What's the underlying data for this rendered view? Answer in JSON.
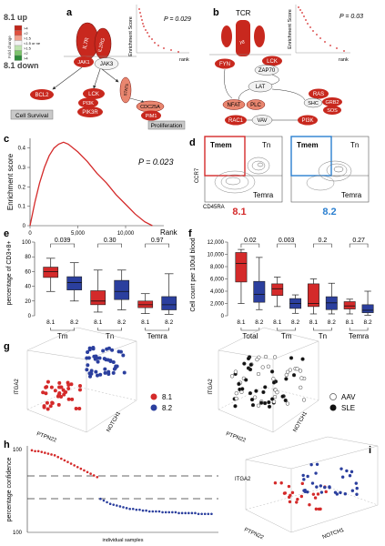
{
  "panels": {
    "a": {
      "letter": "a",
      "legend_up": "8.1 up",
      "legend_down": "8.1 down",
      "legend_title": "Fold change",
      "legend_items": [
        ">4",
        ">2",
        ">1.5",
        "<1.5 or ne",
        ">1.5",
        ">2",
        ">4"
      ],
      "legend_colors": [
        "#c0271c",
        "#e0503e",
        "#f2a08c",
        "#f4f4f4",
        "#bfe3b0",
        "#7cc36b",
        "#2e8b3a"
      ],
      "nodes": [
        "IL7R",
        "IL2RG",
        "JAK1",
        "JAK3",
        "STAT5",
        "BCL2",
        "LCK",
        "PI3K",
        "PIK3R",
        "CDC25A",
        "PIM1"
      ],
      "box_survival": "Cell Survival",
      "box_proliferation": "Proliferation",
      "gsea": {
        "p": "P = 0.029",
        "ylabel": "Enrichment Score",
        "xlabel": "rank"
      }
    },
    "b": {
      "letter": "b",
      "title": "TCR",
      "nodes": [
        "ε",
        "γδ",
        "LCK",
        "FYN",
        "ZAP70",
        "LAT",
        "NFAT",
        "PLC",
        "RAS",
        "SHC",
        "GRB2",
        "SOS",
        "RAC1",
        "VAV",
        "PI3K"
      ],
      "gsea": {
        "p": "P = 0.03",
        "ylabel": "Enrichment Score",
        "xlabel": "rank"
      }
    },
    "c": {
      "letter": "c",
      "p": "P = 0.023",
      "ylabel": "Enrichment score",
      "xlabel": "Rank",
      "yticks": [
        "0.4",
        "0.3",
        "0.2",
        "0.1",
        "0"
      ],
      "xticks": [
        "0",
        "5,000",
        "10,000"
      ]
    },
    "d": {
      "letter": "d",
      "left": {
        "tmem": "Tmem",
        "tn": "Tn",
        "temra": "Temra",
        "group": "8.1",
        "color": "#d42a2a"
      },
      "right": {
        "tmem": "Tmem",
        "tn": "Tn",
        "temra": "Temra",
        "group": "8.2",
        "color": "#2b7fd0"
      },
      "ylabel": "CCR7",
      "xlabel": "CD45RA"
    },
    "e": {
      "letter": "e",
      "ylabel": "percentage of CD3+8+",
      "yticks": [
        "100",
        "80",
        "60",
        "40",
        "20",
        "0"
      ],
      "pvalues": [
        "0.039",
        "0.30",
        "0.97"
      ],
      "groups": [
        "Tm",
        "Tn",
        "Temra"
      ],
      "sub": [
        "8.1",
        "8.2",
        "8.1",
        "8.2",
        "8.1",
        "8.2"
      ]
    },
    "f": {
      "letter": "f",
      "ylabel": "Cell count per 100ul blood",
      "yticks": [
        "12,000",
        "10,000",
        "8,000",
        "6,000",
        "4,000",
        "2,000",
        "0"
      ],
      "pvalues": [
        "0.02",
        "0.003",
        "0.2",
        "0.27"
      ],
      "groups": [
        "Total",
        "Tm",
        "Tn",
        "Temra"
      ],
      "sub": [
        "8.1",
        "8.2",
        "8.1",
        "8.2",
        "8.1",
        "8.2",
        "8.1",
        "8.2"
      ]
    },
    "g": {
      "letter": "g",
      "axes": [
        "ITGA2",
        "PTPN22",
        "NOTCH1"
      ],
      "legend1": [
        "8.1",
        "8.2"
      ],
      "legend2": [
        "AAV",
        "SLE"
      ]
    },
    "h": {
      "letter": "h",
      "ylabel": "percentage confidence",
      "ytop": "100",
      "ybottom": "100",
      "xlabel": "individual samples"
    },
    "i": {
      "letter": "i",
      "axes": [
        "ITGA2",
        "PTPN22",
        "NOTCH1"
      ]
    }
  },
  "colors": {
    "red": "#d42a2a",
    "blue": "#2b3f9e",
    "node_red": "#c8281e",
    "node_light": "#e9866f"
  },
  "chart_data": [
    {
      "type": "box",
      "panel": "e",
      "ylabel": "percentage of CD3+8+",
      "ylim": [
        0,
        100
      ],
      "categories": [
        "Tm 8.1",
        "Tm 8.2",
        "Tn 8.1",
        "Tn 8.2",
        "Temra 8.1",
        "Temra 8.2"
      ],
      "boxes": [
        {
          "min": 33,
          "q1": 52,
          "median": 60,
          "q3": 66,
          "max": 78
        },
        {
          "min": 20,
          "q1": 35,
          "median": 45,
          "q3": 53,
          "max": 72
        },
        {
          "min": 5,
          "q1": 15,
          "median": 20,
          "q3": 34,
          "max": 62
        },
        {
          "min": 8,
          "q1": 22,
          "median": 33,
          "q3": 48,
          "max": 62
        },
        {
          "min": 3,
          "q1": 11,
          "median": 15,
          "q3": 20,
          "max": 30
        },
        {
          "min": 2,
          "q1": 8,
          "median": 15,
          "q3": 26,
          "max": 57
        }
      ],
      "pvalues": [
        "0.039",
        "0.30",
        "0.97"
      ]
    },
    {
      "type": "box",
      "panel": "f",
      "ylabel": "Cell count per 100ul blood",
      "ylim": [
        0,
        12000
      ],
      "categories": [
        "Total 8.1",
        "Total 8.2",
        "Tm 8.1",
        "Tm 8.2",
        "Tn 8.1",
        "Tn 8.2",
        "Temra 8.1",
        "Temra 8.2"
      ],
      "boxes": [
        {
          "min": 2000,
          "q1": 5500,
          "median": 8500,
          "q3": 10300,
          "max": 10800
        },
        {
          "min": 1000,
          "q1": 2200,
          "median": 3500,
          "q3": 5600,
          "max": 9500
        },
        {
          "min": 1500,
          "q1": 3300,
          "median": 4400,
          "q3": 5200,
          "max": 6300
        },
        {
          "min": 400,
          "q1": 1200,
          "median": 2000,
          "q3": 2800,
          "max": 3400
        },
        {
          "min": 300,
          "q1": 1500,
          "median": 2000,
          "q3": 5200,
          "max": 6000
        },
        {
          "min": 300,
          "q1": 1000,
          "median": 2100,
          "q3": 3100,
          "max": 5300
        },
        {
          "min": 300,
          "q1": 1100,
          "median": 1600,
          "q3": 2300,
          "max": 2700
        },
        {
          "min": 100,
          "q1": 500,
          "median": 900,
          "q3": 1800,
          "max": 4000
        }
      ],
      "pvalues": [
        "0.02",
        "0.003",
        "0.2",
        "0.27"
      ]
    },
    {
      "type": "line",
      "panel": "c",
      "xlabel": "Rank",
      "ylabel": "Enrichment score",
      "xlim": [
        0,
        14000
      ],
      "ylim": [
        0,
        0.45
      ],
      "x": [
        0,
        500,
        1000,
        1500,
        2000,
        2500,
        3000,
        3500,
        4000,
        5000,
        6000,
        7000,
        8000,
        9000,
        10000,
        11000,
        12000,
        12800
      ],
      "y": [
        0,
        0.12,
        0.22,
        0.3,
        0.36,
        0.4,
        0.42,
        0.43,
        0.42,
        0.38,
        0.33,
        0.27,
        0.22,
        0.16,
        0.11,
        0.06,
        0.02,
        0
      ]
    },
    {
      "type": "scatter",
      "panel": "h",
      "xlabel": "individual samples",
      "ylabel": "percentage confidence",
      "group1_y": [
        98,
        97,
        97,
        96,
        95,
        94,
        93,
        92,
        90,
        88,
        86,
        84,
        82,
        80,
        78,
        76,
        74,
        72,
        70,
        68,
        66
      ],
      "group2_y": [
        60,
        62,
        64,
        66,
        67,
        68,
        69,
        70,
        71,
        72,
        72,
        73,
        73,
        74,
        74,
        75,
        75,
        75,
        75,
        76,
        76,
        76,
        76,
        76,
        77,
        77,
        77,
        77,
        77,
        77,
        78,
        78,
        78,
        78,
        78
      ]
    }
  ]
}
